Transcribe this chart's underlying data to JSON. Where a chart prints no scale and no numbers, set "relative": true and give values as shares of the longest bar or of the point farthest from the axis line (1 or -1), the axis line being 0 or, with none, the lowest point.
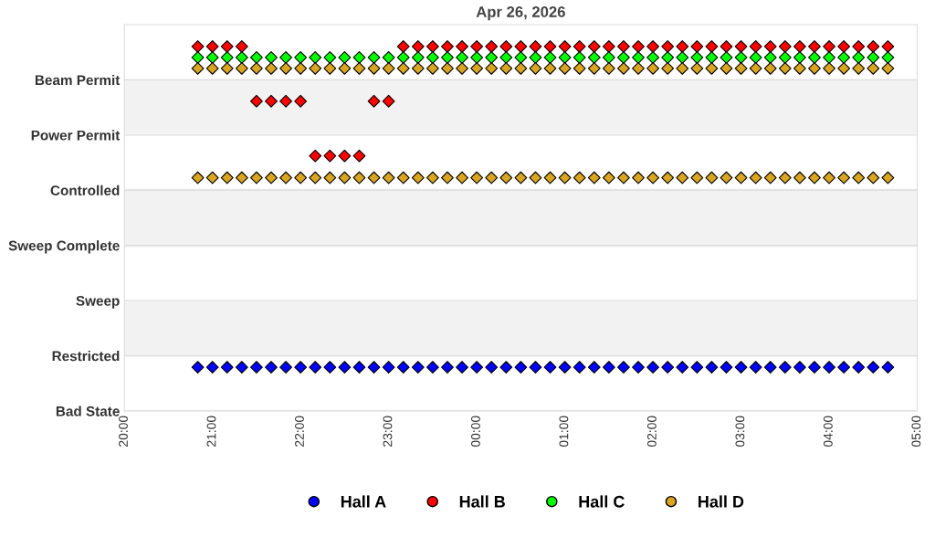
{
  "chart_data": {
    "type": "scatter",
    "title": "Apr 26, 2026",
    "relative": true,
    "x": [
      "2026-04-26T20:50",
      "2026-04-26T21:00",
      "2026-04-26T21:10",
      "2026-04-26T21:20",
      "2026-04-26T21:30",
      "2026-04-26T21:40",
      "2026-04-26T21:50",
      "2026-04-26T22:00",
      "2026-04-26T22:10",
      "2026-04-26T22:20",
      "2026-04-26T22:30",
      "2026-04-26T22:40",
      "2026-04-26T22:50",
      "2026-04-26T23:00",
      "2026-04-26T23:10",
      "2026-04-26T23:20",
      "2026-04-26T23:30",
      "2026-04-26T23:40",
      "2026-04-26T23:50",
      "2026-04-27T00:00",
      "2026-04-27T00:10",
      "2026-04-27T00:20",
      "2026-04-27T00:30",
      "2026-04-27T00:40",
      "2026-04-27T00:50",
      "2026-04-27T01:00",
      "2026-04-27T01:10",
      "2026-04-27T01:20",
      "2026-04-27T01:30",
      "2026-04-27T01:40",
      "2026-04-27T01:50",
      "2026-04-27T02:00",
      "2026-04-27T02:10",
      "2026-04-27T02:20",
      "2026-04-27T02:30",
      "2026-04-27T02:40",
      "2026-04-27T02:50",
      "2026-04-27T03:00",
      "2026-04-27T03:10",
      "2026-04-27T03:20",
      "2026-04-27T03:30",
      "2026-04-27T03:40",
      "2026-04-27T03:50",
      "2026-04-27T04:00",
      "2026-04-27T04:10",
      "2026-04-27T04:20",
      "2026-04-27T04:30",
      "2026-04-27T04:40"
    ],
    "annotations": [
      "Beam Permit",
      "Power Permit",
      "Controlled",
      "Sweep Complete",
      "Sweep",
      "Restricted",
      "Bad State"
    ],
    "series": [
      {
        "name": "Hall A",
        "color": "#0000ff",
        "values": [
          0.12,
          0.12,
          0.12,
          0.12,
          0.12,
          0.12,
          0.12,
          0.12,
          0.12,
          0.12,
          0.12,
          0.12,
          0.12,
          0.12,
          0.12,
          0.12,
          0.12,
          0.12,
          0.12,
          0.12,
          0.12,
          0.12,
          0.12,
          0.12,
          0.12,
          0.12,
          0.12,
          0.12,
          0.12,
          0.12,
          0.12,
          0.12,
          0.12,
          0.12,
          0.12,
          0.12,
          0.12,
          0.12,
          0.12,
          0.12,
          0.12,
          0.12,
          0.12,
          0.12,
          0.12,
          0.12,
          0.12,
          0.12
        ]
      },
      {
        "name": "Hall B",
        "color": "#ff0000",
        "values": [
          1,
          1,
          1,
          1,
          0.85,
          0.85,
          0.85,
          0.85,
          0.7,
          0.7,
          0.7,
          0.7,
          0.85,
          0.85,
          1,
          1,
          1,
          1,
          1,
          1,
          1,
          1,
          1,
          1,
          1,
          1,
          1,
          1,
          1,
          1,
          1,
          1,
          1,
          1,
          1,
          1,
          1,
          1,
          1,
          1,
          1,
          1,
          1,
          1,
          1,
          1,
          1,
          1
        ]
      },
      {
        "name": "Hall C",
        "color": "#00ff00",
        "values": [
          0.97,
          0.97,
          0.97,
          0.97,
          0.97,
          0.97,
          0.97,
          0.97,
          0.97,
          0.97,
          0.97,
          0.97,
          0.97,
          0.97,
          0.97,
          0.97,
          0.97,
          0.97,
          0.97,
          0.97,
          0.97,
          0.97,
          0.97,
          0.97,
          0.97,
          0.97,
          0.97,
          0.97,
          0.97,
          0.97,
          0.97,
          0.97,
          0.97,
          0.97,
          0.97,
          0.97,
          0.97,
          0.97,
          0.97,
          0.97,
          0.97,
          0.97,
          0.97,
          0.97,
          0.97,
          0.97,
          0.97,
          0.97
        ]
      },
      {
        "name": "Hall D",
        "color": "#daa520",
        "x": [
          "2026-04-26T20:50",
          "2026-04-26T21:00",
          "2026-04-26T21:10",
          "2026-04-26T21:20",
          "2026-04-26T21:30",
          "2026-04-26T21:40",
          "2026-04-26T21:50",
          "2026-04-26T22:00",
          "2026-04-26T22:10",
          "2026-04-26T22:20",
          "2026-04-26T22:30",
          "2026-04-26T22:40",
          "2026-04-26T22:50",
          "2026-04-26T23:00",
          "2026-04-26T23:10",
          "2026-04-26T23:20",
          "2026-04-26T23:30",
          "2026-04-26T23:40",
          "2026-04-26T23:50",
          "2026-04-27T00:00",
          "2026-04-27T00:10",
          "2026-04-27T00:20",
          "2026-04-27T00:30",
          "2026-04-27T00:40",
          "2026-04-27T00:50",
          "2026-04-27T01:00",
          "2026-04-27T01:10",
          "2026-04-27T01:20",
          "2026-04-27T01:30",
          "2026-04-27T01:40",
          "2026-04-27T01:50",
          "2026-04-27T02:00",
          "2026-04-27T02:10",
          "2026-04-27T02:20",
          "2026-04-27T02:30",
          "2026-04-27T02:40",
          "2026-04-27T02:50",
          "2026-04-27T03:00",
          "2026-04-27T03:10",
          "2026-04-27T03:20",
          "2026-04-27T03:30",
          "2026-04-27T03:40",
          "2026-04-27T03:50",
          "2026-04-27T04:00",
          "2026-04-27T04:10",
          "2026-04-27T04:20",
          "2026-04-27T04:30",
          "2026-04-27T04:40",
          "2026-04-26T20:50",
          "2026-04-26T21:00",
          "2026-04-26T21:10",
          "2026-04-26T21:20",
          "2026-04-26T21:30",
          "2026-04-26T21:40",
          "2026-04-26T21:50",
          "2026-04-26T22:00",
          "2026-04-26T22:10",
          "2026-04-26T22:20",
          "2026-04-26T22:30",
          "2026-04-26T22:40",
          "2026-04-26T22:50",
          "2026-04-26T23:00",
          "2026-04-26T23:10",
          "2026-04-26T23:20",
          "2026-04-26T23:30",
          "2026-04-26T23:40",
          "2026-04-26T23:50",
          "2026-04-27T00:00",
          "2026-04-27T00:10",
          "2026-04-27T00:20",
          "2026-04-27T00:30",
          "2026-04-27T00:40",
          "2026-04-27T00:50",
          "2026-04-27T01:00",
          "2026-04-27T01:10",
          "2026-04-27T01:20",
          "2026-04-27T01:30",
          "2026-04-27T01:40",
          "2026-04-27T01:50",
          "2026-04-27T02:00",
          "2026-04-27T02:10",
          "2026-04-27T02:20",
          "2026-04-27T02:30",
          "2026-04-27T02:40",
          "2026-04-27T02:50",
          "2026-04-27T03:00",
          "2026-04-27T03:10",
          "2026-04-27T03:20",
          "2026-04-27T03:30",
          "2026-04-27T03:40",
          "2026-04-27T03:50",
          "2026-04-27T04:00",
          "2026-04-27T04:10",
          "2026-04-27T04:20",
          "2026-04-27T04:30",
          "2026-04-27T04:40"
        ],
        "values": [
          0.94,
          0.94,
          0.94,
          0.94,
          0.94,
          0.94,
          0.94,
          0.94,
          0.94,
          0.94,
          0.94,
          0.94,
          0.94,
          0.94,
          0.94,
          0.94,
          0.94,
          0.94,
          0.94,
          0.94,
          0.94,
          0.94,
          0.94,
          0.94,
          0.94,
          0.94,
          0.94,
          0.94,
          0.94,
          0.94,
          0.94,
          0.94,
          0.94,
          0.94,
          0.94,
          0.94,
          0.94,
          0.94,
          0.94,
          0.94,
          0.94,
          0.94,
          0.94,
          0.94,
          0.94,
          0.94,
          0.94,
          0.94,
          0.64,
          0.64,
          0.64,
          0.64,
          0.64,
          0.64,
          0.64,
          0.64,
          0.64,
          0.64,
          0.64,
          0.64,
          0.64,
          0.64,
          0.64,
          0.64,
          0.64,
          0.64,
          0.64,
          0.64,
          0.64,
          0.64,
          0.64,
          0.64,
          0.64,
          0.64,
          0.64,
          0.64,
          0.64,
          0.64,
          0.64,
          0.64,
          0.64,
          0.64,
          0.64,
          0.64,
          0.64,
          0.64,
          0.64,
          0.64,
          0.64,
          0.64,
          0.64,
          0.64,
          0.64,
          0.64,
          0.64,
          0.64
        ]
      }
    ],
    "xlim": [
      "2026-04-26T20:00",
      "2026-04-27T05:00"
    ],
    "xticks": [
      {
        "value": "2026-04-26T20:00",
        "label": "20:00"
      },
      {
        "value": "2026-04-26T21:00",
        "label": "21:00"
      },
      {
        "value": "2026-04-26T22:00",
        "label": "22:00"
      },
      {
        "value": "2026-04-26T23:00",
        "label": "23:00"
      },
      {
        "value": "2026-04-27T00:00",
        "label": "00:00"
      },
      {
        "value": "2026-04-27T01:00",
        "label": "01:00"
      },
      {
        "value": "2026-04-27T02:00",
        "label": "02:00"
      },
      {
        "value": "2026-04-27T03:00",
        "label": "03:00"
      },
      {
        "value": "2026-04-27T04:00",
        "label": "04:00"
      },
      {
        "value": "2026-04-27T05:00",
        "label": "05:00"
      }
    ],
    "bands": [
      {
        "axis": "y",
        "from": 0.15,
        "to": 0.3,
        "color": "#f2f2f2"
      },
      {
        "axis": "y",
        "from": 0.45,
        "to": 0.61,
        "color": "#f2f2f2"
      },
      {
        "axis": "y",
        "from": 0.76,
        "to": 0.91,
        "color": "#f2f2f2"
      }
    ],
    "grid": "y",
    "legend": "bottom",
    "marker": "diamond"
  }
}
